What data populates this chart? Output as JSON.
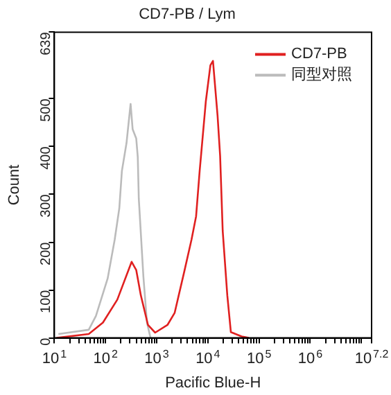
{
  "chart_data": {
    "type": "line",
    "title": "CD7-PB / Lym",
    "xlabel": "Pacific Blue-H",
    "ylabel": "Count",
    "log": "x",
    "grid": false,
    "legend": "top right",
    "marker": "none",
    "line_style": "solid",
    "xlim": [
      10,
      15848932
    ],
    "xticks": [
      {
        "value": 10,
        "label": "10$^{1}$"
      },
      {
        "value": 20,
        "label": null
      },
      {
        "value": 30,
        "label": null
      },
      {
        "value": 40,
        "label": null
      },
      {
        "value": 50,
        "label": null
      },
      {
        "value": 60,
        "label": null
      },
      {
        "value": 70,
        "label": null
      },
      {
        "value": 80,
        "label": null
      },
      {
        "value": 90,
        "label": null
      },
      {
        "value": 100,
        "label": "10$^{2}$"
      },
      {
        "value": 200,
        "label": null
      },
      {
        "value": 300,
        "label": null
      },
      {
        "value": 400,
        "label": null
      },
      {
        "value": 500,
        "label": null
      },
      {
        "value": 600,
        "label": null
      },
      {
        "value": 700,
        "label": null
      },
      {
        "value": 800,
        "label": null
      },
      {
        "value": 900,
        "label": null
      },
      {
        "value": 1000,
        "label": "10$^{3}$"
      },
      {
        "value": 2000,
        "label": null
      },
      {
        "value": 3000,
        "label": null
      },
      {
        "value": 4000,
        "label": null
      },
      {
        "value": 5000,
        "label": null
      },
      {
        "value": 6000,
        "label": null
      },
      {
        "value": 7000,
        "label": null
      },
      {
        "value": 8000,
        "label": null
      },
      {
        "value": 9000,
        "label": null
      },
      {
        "value": 10000,
        "label": "10$^{4}$"
      },
      {
        "value": 20000,
        "label": null
      },
      {
        "value": 30000,
        "label": null
      },
      {
        "value": 40000,
        "label": null
      },
      {
        "value": 50000,
        "label": null
      },
      {
        "value": 60000,
        "label": null
      },
      {
        "value": 70000,
        "label": null
      },
      {
        "value": 80000,
        "label": null
      },
      {
        "value": 90000,
        "label": null
      },
      {
        "value": 100000,
        "label": "10$^{5}$"
      },
      {
        "value": 200000,
        "label": null
      },
      {
        "value": 300000,
        "label": null
      },
      {
        "value": 400000,
        "label": null
      },
      {
        "value": 500000,
        "label": null
      },
      {
        "value": 600000,
        "label": null
      },
      {
        "value": 700000,
        "label": null
      },
      {
        "value": 800000,
        "label": null
      },
      {
        "value": 900000,
        "label": null
      },
      {
        "value": 1000000,
        "label": "10$^{6}$"
      },
      {
        "value": 2000000,
        "label": null
      },
      {
        "value": 3000000,
        "label": null
      },
      {
        "value": 4000000,
        "label": null
      },
      {
        "value": 5000000,
        "label": null
      },
      {
        "value": 6000000,
        "label": null
      },
      {
        "value": 7000000,
        "label": null
      },
      {
        "value": 8000000,
        "label": null
      },
      {
        "value": 9000000,
        "label": null
      },
      {
        "value": 10000000,
        "label": null
      },
      {
        "value": 15848932,
        "label": "10$^{7.2}$"
      }
    ],
    "ylim": [
      0,
      639
    ],
    "yticks": [
      0,
      100,
      200,
      300,
      400,
      500,
      639
    ],
    "series": [
      {
        "name": "CD7-PB",
        "color": "#e02020",
        "x": [
          11,
          47,
          89,
          170,
          324,
          398,
          490,
          676,
          933,
          1622,
          2239,
          3467,
          4786,
          5888,
          6918,
          9120,
          11220,
          12589,
          15488,
          17378,
          19498,
          23988,
          28184,
          45709,
          63096
        ],
        "values": [
          0,
          8,
          32,
          80,
          159,
          142,
          89,
          27,
          11,
          27,
          52,
          139,
          205,
          254,
          349,
          494,
          570,
          579,
          464,
          380,
          224,
          89,
          12,
          3,
          0
        ]
      },
      {
        "name": "同型对照",
        "color": "#bbbbbb",
        "x": [
          12,
          47,
          65,
          110,
          151,
          186,
          209,
          257,
          309,
          339,
          398,
          427,
          447,
          550,
          646,
          759
        ],
        "values": [
          8,
          17,
          46,
          124,
          205,
          271,
          349,
          407,
          489,
          436,
          417,
          378,
          291,
          128,
          32,
          0
        ]
      }
    ]
  }
}
